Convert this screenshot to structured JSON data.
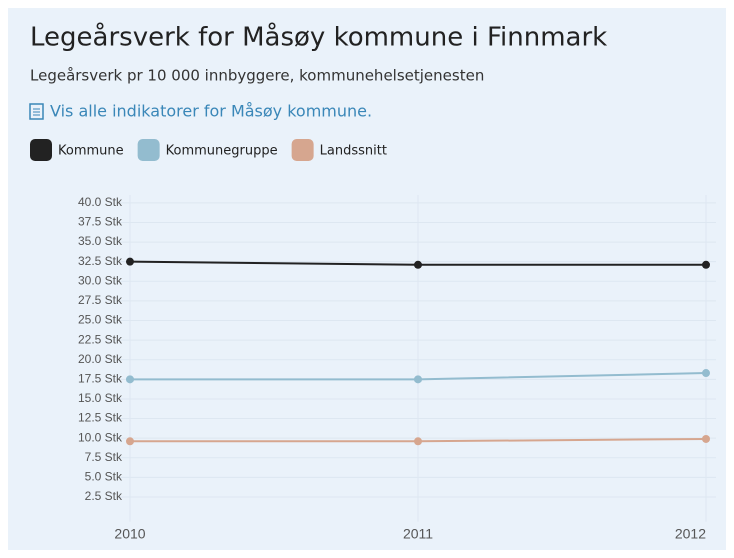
{
  "title": "Legeårsverk for Måsøy kommune i Finnmark",
  "subtitle": "Legeårsverk pr 10 000 innbyggere, kommunehelsetjenesten",
  "link": "Vis alle indikatorer for Måsøy kommune.",
  "chart_data": {
    "type": "line",
    "categories": [
      "2010",
      "2011",
      "2012"
    ],
    "series": [
      {
        "name": "Kommune",
        "color": "#222222",
        "values": [
          32.5,
          32.1,
          32.1
        ]
      },
      {
        "name": "Kommunegruppe",
        "color": "#93bccf",
        "values": [
          17.5,
          17.5,
          18.3
        ]
      },
      {
        "name": "Landssnitt",
        "color": "#d6a68f",
        "values": [
          9.6,
          9.6,
          9.9
        ]
      }
    ],
    "ylim": [
      0,
      41
    ],
    "yticks": [
      {
        "value": 2.5,
        "label": "2.5 Stk"
      },
      {
        "value": 5,
        "label": "5.0 Stk"
      },
      {
        "value": 7.5,
        "label": "7.5 Stk"
      },
      {
        "value": 10,
        "label": "10.0 Stk"
      },
      {
        "value": 12.5,
        "label": "12.5 Stk"
      },
      {
        "value": 15,
        "label": "15.0 Stk"
      },
      {
        "value": 17.5,
        "label": "17.5 Stk"
      },
      {
        "value": 20,
        "label": "20.0 Stk"
      },
      {
        "value": 22.5,
        "label": "22.5 Stk"
      },
      {
        "value": 25,
        "label": "25.0 Stk"
      },
      {
        "value": 27.5,
        "label": "27.5 Stk"
      },
      {
        "value": 30,
        "label": "30.0 Stk"
      },
      {
        "value": 32.5,
        "label": "32.5 Stk"
      },
      {
        "value": 35,
        "label": "35.0 Stk"
      },
      {
        "value": 37.5,
        "label": "37.5 Stk"
      },
      {
        "value": 40,
        "label": "40.0 Stk"
      }
    ],
    "grid": true
  }
}
